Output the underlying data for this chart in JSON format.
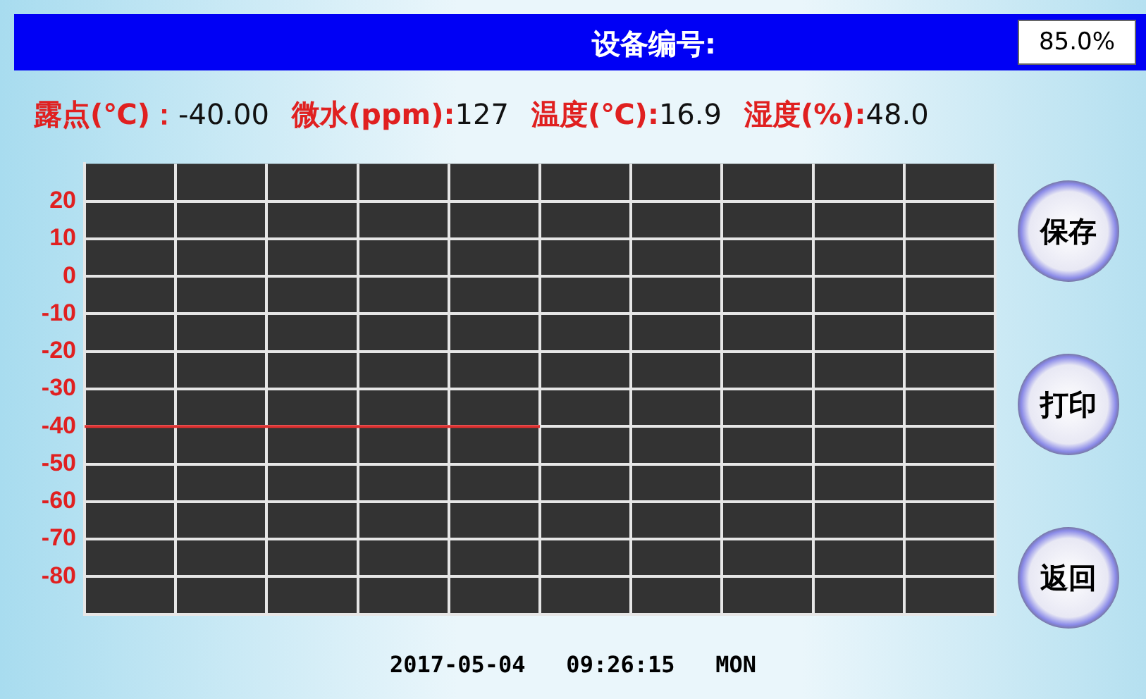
{
  "chart_data": {
    "type": "line",
    "title": "设备编号:",
    "categories": [
      null,
      null,
      null,
      null,
      null,
      null,
      null,
      null,
      null,
      null,
      null
    ],
    "series": [
      {
        "color": "#e03030",
        "values": [
          -40,
          -40,
          -40,
          -40,
          -40,
          -40,
          null,
          null,
          null,
          null,
          null
        ]
      }
    ],
    "ylim": [
      -90,
      30
    ],
    "yticks": [
      20,
      10,
      0,
      -10,
      -20,
      -30,
      -40,
      -50,
      -60,
      -70,
      -80
    ],
    "grid": true,
    "marker": "none",
    "line_style": "solid",
    "tick_labels": "y",
    "annotations": [
      "85.0%",
      "露点(℃)：",
      "-40.00",
      "微水(ppm):",
      "127",
      "温度(℃):",
      "16.9",
      "湿度(%):",
      "48.0",
      "2017-05-04   09:26:15   MON",
      "保存",
      "打印",
      "返回"
    ]
  }
}
